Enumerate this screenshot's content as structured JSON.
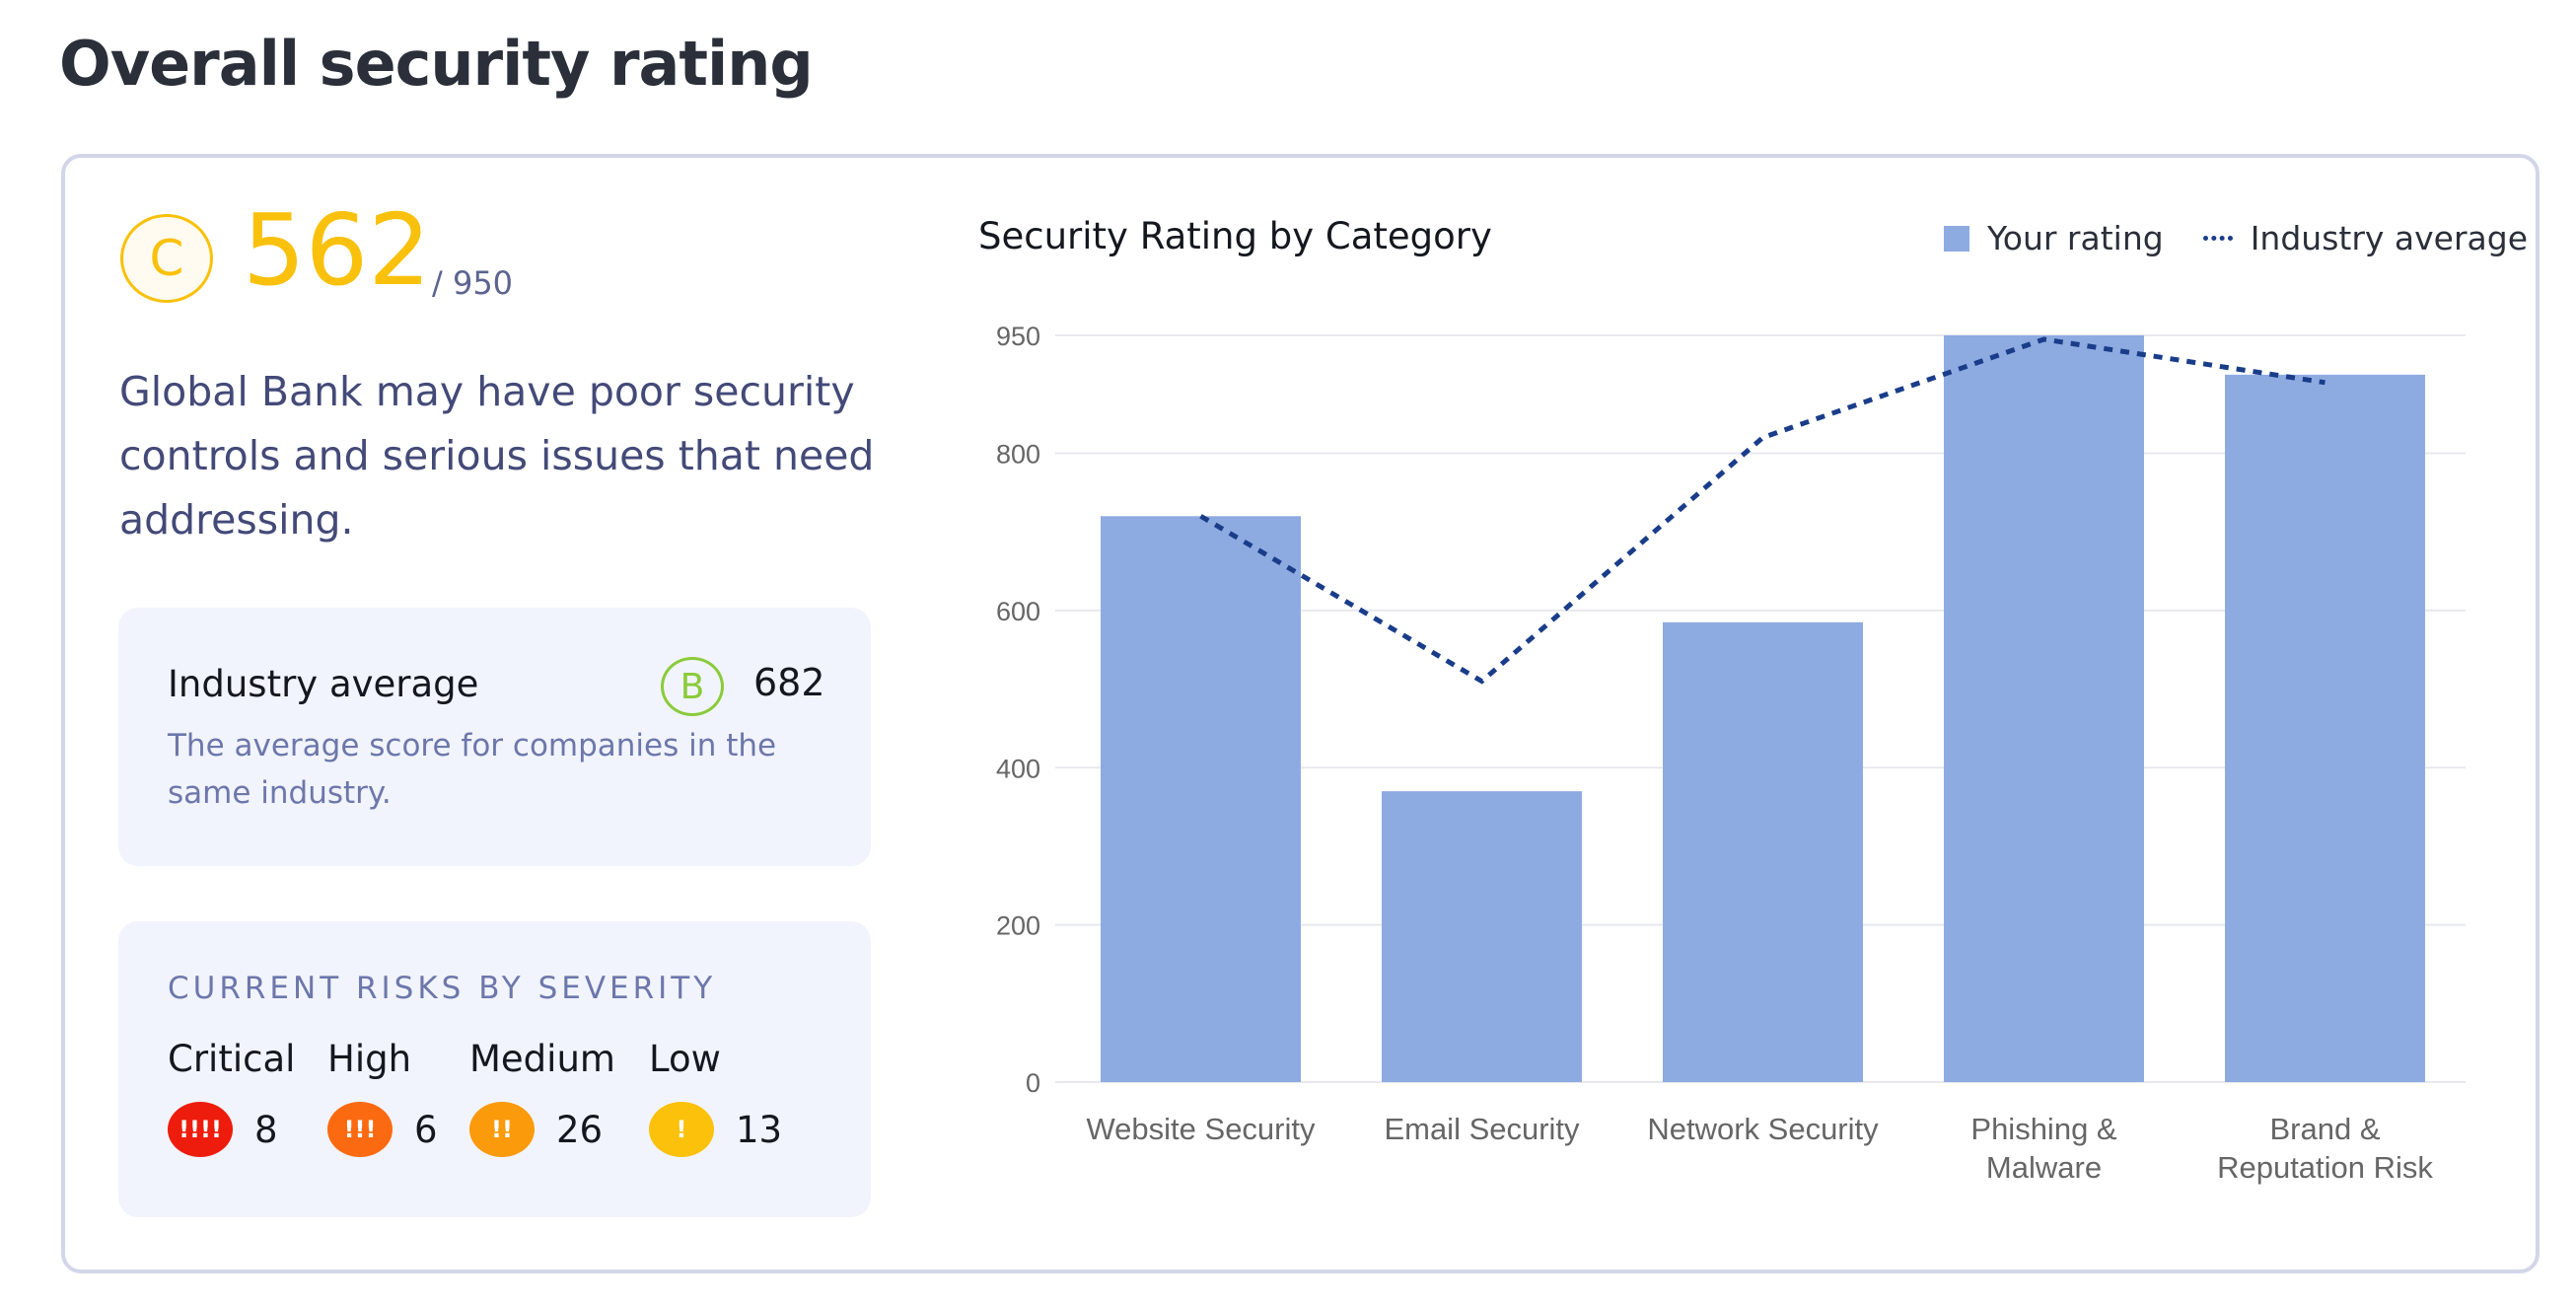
{
  "page": {
    "title": "Overall security rating"
  },
  "rating": {
    "grade": "C",
    "score": "562",
    "out_of": "/ 950",
    "description": "Global Bank may have poor security controls and serious issues that need addressing.",
    "color": "#f9c10b"
  },
  "industry": {
    "title": "Industry average",
    "grade": "B",
    "score": "682",
    "description": "The average score for companies in the same industry."
  },
  "risks": {
    "heading": "CURRENT RISKS BY SEVERITY",
    "items": [
      {
        "label": "Critical",
        "icon": "!!!!",
        "count": "8",
        "color": "#ee1c0c"
      },
      {
        "label": "High",
        "icon": "!!!",
        "count": "6",
        "color": "#fb6a10"
      },
      {
        "label": "Medium",
        "icon": "!!",
        "count": "26",
        "color": "#fb9a0a"
      },
      {
        "label": "Low",
        "icon": "!",
        "count": "13",
        "color": "#fcc10b"
      }
    ]
  },
  "chart_data": {
    "type": "bar",
    "title": "Security Rating by Category",
    "categories": [
      [
        "Website Security"
      ],
      [
        "Email Security"
      ],
      [
        "Network Security"
      ],
      [
        "Phishing &",
        "Malware"
      ],
      [
        "Brand &",
        "Reputation Risk"
      ]
    ],
    "series": [
      {
        "name": "Your rating",
        "type": "bar",
        "values": [
          720,
          370,
          585,
          950,
          900
        ],
        "color": "#8eabe1"
      },
      {
        "name": "Industry average",
        "type": "line",
        "style": "dotted",
        "values": [
          720,
          510,
          820,
          945,
          890
        ],
        "color": "#1a3d8a"
      }
    ],
    "yticks": [
      0,
      200,
      400,
      600,
      800,
      950
    ],
    "ylim": [
      0,
      950
    ],
    "grid": true,
    "legend": "top-right",
    "xlabel": "",
    "ylabel": ""
  }
}
